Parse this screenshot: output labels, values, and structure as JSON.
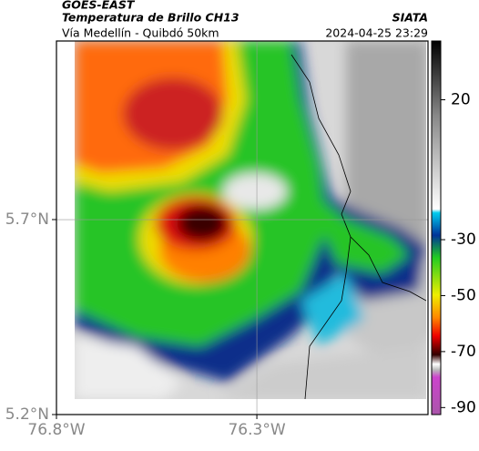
{
  "header": {
    "title": "GOES-EAST",
    "subtitle": "Temperatura de Brillo CH13",
    "source": "SIATA",
    "region": "Vía Medellín - Quibdó 50km",
    "timestamp": "2024-04-25 23:29"
  },
  "map": {
    "xlim": [
      -76.8,
      -75.873
    ],
    "ylim": [
      5.2,
      6.158
    ],
    "xticks": [
      {
        "value": -76.8,
        "label": "76.8°W"
      },
      {
        "value": -76.3,
        "label": "76.3°W"
      }
    ],
    "yticks": [
      {
        "value": 5.7,
        "label": "5.7°N"
      },
      {
        "value": 5.2,
        "label": "5.2°N"
      }
    ],
    "grid": true
  },
  "colorbar": {
    "ylim": [
      -92.5,
      41
    ],
    "yticks": [
      20,
      -30,
      -50,
      -70,
      -90
    ]
  }
}
